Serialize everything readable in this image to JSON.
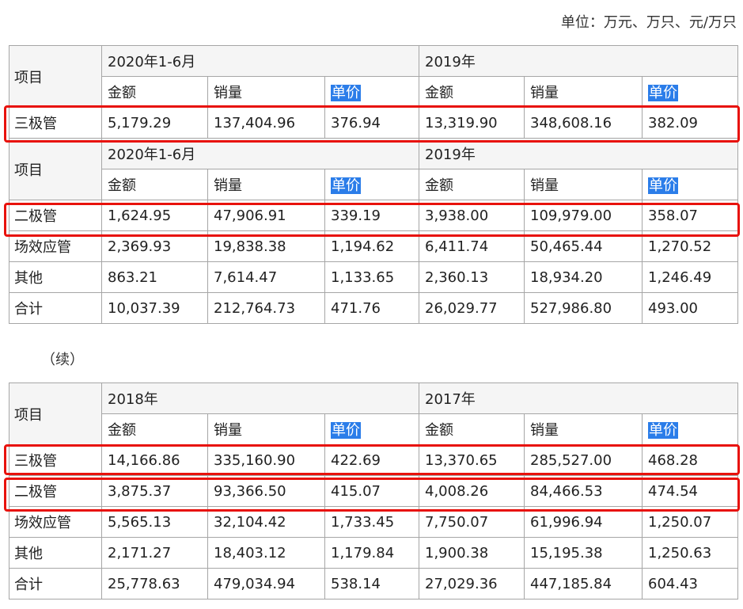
{
  "unit_note": "单位：万元、万只、元/万只",
  "continued_label": "（续）",
  "table_a": {
    "sections": [
      {
        "item_label": "项目",
        "period1": "2020年1-6月",
        "period2": "2019年",
        "cols": [
          "金额",
          "销量",
          "单价",
          "金额",
          "销量",
          "单价"
        ],
        "rows": [
          {
            "name": "三极管",
            "values": [
              "5,179.29",
              "137,404.96",
              "376.94",
              "13,319.90",
              "348,608.16",
              "382.09"
            ]
          }
        ]
      },
      {
        "item_label": "项目",
        "period1": "2020年1-6月",
        "period2": "2019年",
        "cols": [
          "金额",
          "销量",
          "单价",
          "金额",
          "销量",
          "单价"
        ],
        "rows": [
          {
            "name": "二极管",
            "values": [
              "1,624.95",
              "47,906.91",
              "339.19",
              "3,938.00",
              "109,979.00",
              "358.07"
            ]
          },
          {
            "name": "场效应管",
            "values": [
              "2,369.93",
              "19,838.38",
              "1,194.62",
              "6,411.74",
              "50,465.44",
              "1,270.52"
            ]
          },
          {
            "name": "其他",
            "values": [
              "863.21",
              "7,614.47",
              "1,133.65",
              "2,360.13",
              "18,934.20",
              "1,246.49"
            ]
          },
          {
            "name": "合计",
            "values": [
              "10,037.39",
              "212,764.73",
              "471.76",
              "26,029.77",
              "527,986.80",
              "493.00"
            ]
          }
        ]
      }
    ]
  },
  "table_b": {
    "item_label": "项目",
    "period1": "2018年",
    "period2": "2017年",
    "cols": [
      "金额",
      "销量",
      "单价",
      "金额",
      "销量",
      "单价"
    ],
    "rows": [
      {
        "name": "三极管",
        "values": [
          "14,166.86",
          "335,160.90",
          "422.69",
          "13,370.65",
          "285,527.00",
          "468.28"
        ]
      },
      {
        "name": "二极管",
        "values": [
          "3,875.37",
          "93,366.50",
          "415.07",
          "4,008.26",
          "84,466.53",
          "474.54"
        ]
      },
      {
        "name": "场效应管",
        "values": [
          "5,565.13",
          "32,104.42",
          "1,733.45",
          "7,750.07",
          "61,996.94",
          "1,250.07"
        ]
      },
      {
        "name": "其他",
        "values": [
          "2,171.27",
          "18,403.12",
          "1,179.84",
          "1,900.38",
          "15,195.38",
          "1,250.63"
        ]
      },
      {
        "name": "合计",
        "values": [
          "25,778.63",
          "479,034.94",
          "538.14",
          "27,029.36",
          "447,185.84",
          "604.43"
        ]
      }
    ]
  },
  "colors": {
    "highlight_bg": "#2b7de9",
    "highlight_text": "#ffffff",
    "box_border": "#e8120c",
    "grid": "#a6a6a6"
  }
}
